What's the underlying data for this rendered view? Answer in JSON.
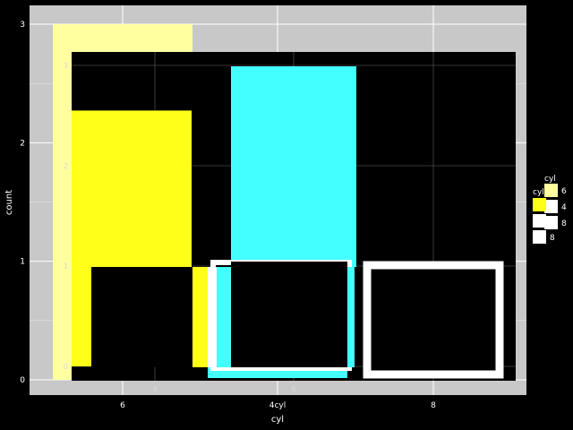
{
  "chart_data": [
    {
      "type": "bar",
      "title": "",
      "xlabel": "cyl",
      "ylabel": "count",
      "categories": [
        "6",
        "4cyl",
        "8"
      ],
      "x_tick_labels": [
        "6",
        "4cyl",
        "8"
      ],
      "y_ticks": [
        0,
        1,
        2,
        3
      ],
      "ylim": [
        0,
        3
      ],
      "values": [
        3,
        1,
        1
      ],
      "fills": [
        "#ffffa0",
        "#ffffff",
        "#ffffff"
      ],
      "grid": true,
      "legend": {
        "title": "cyl",
        "placement": "right",
        "entries": [
          {
            "label": "6",
            "color": "#ffffa0"
          },
          {
            "label": "4",
            "color": "#ffffff"
          },
          {
            "label": "8",
            "color": "#ffffff"
          }
        ]
      },
      "panel_background": "#c8c8c8"
    },
    {
      "type": "bar",
      "title": "",
      "xlabel": "",
      "ylabel": "",
      "categories": [
        "4",
        "6",
        "8"
      ],
      "x_tick_labels": [
        "4",
        "6",
        "8"
      ],
      "y_ticks": [
        0,
        1,
        2,
        3
      ],
      "ylim": [
        0,
        3
      ],
      "fill_series": [
        {
          "name": "4",
          "values": [
            2.55,
            0.95,
            0
          ],
          "color": "#ffff1a"
        },
        {
          "name": "6",
          "values": [
            0.95,
            2.4,
            0.95
          ],
          "color": "#44ffff"
        }
      ],
      "outline_values": [
        0.95,
        0.95,
        0.95
      ],
      "grid": true,
      "legend": {
        "title": "cyl",
        "placement": "right",
        "entries": [
          {
            "label": "4",
            "color": "#ffff1a"
          },
          {
            "label": "6",
            "color": "#ffffff"
          },
          {
            "label": "8",
            "color": "#ffffff"
          }
        ]
      },
      "panel_background": "#000000"
    }
  ]
}
